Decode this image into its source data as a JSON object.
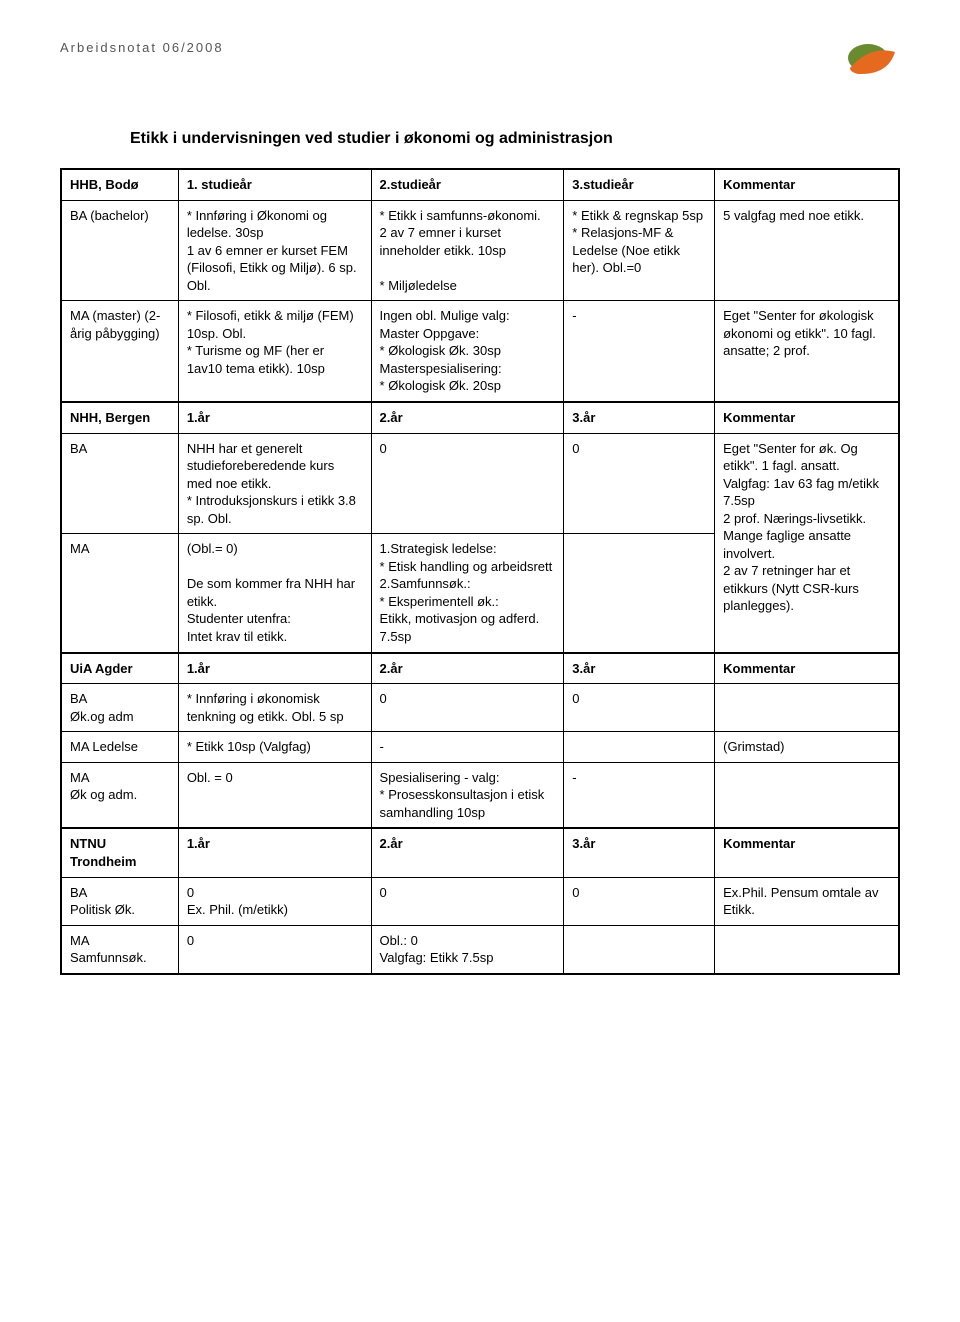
{
  "doc_label": "Arbeidsnotat 06/2008",
  "title": "Etikk i undervisningen ved studier i økonomi og administrasjon",
  "hhb_header": {
    "c0": "HHB, Bodø",
    "c1": "1. studieår",
    "c2": "2.studieår",
    "c3": "3.studieår",
    "c4": "Kommentar"
  },
  "hhb_ba": {
    "c0": "BA (bachelor)",
    "c1": "* Innføring i Økonomi og ledelse. 30sp\n1 av 6 emner er kurset FEM (Filosofi, Etikk og Miljø). 6 sp. Obl.",
    "c2": "* Etikk i samfunns-økonomi.\n2 av 7 emner i kurset inneholder etikk. 10sp\n\n* Miljøledelse",
    "c3": "* Etikk & regnskap 5sp\n* Relasjons-MF & Ledelse (Noe etikk her). Obl.=0",
    "c4": "5 valgfag med noe etikk."
  },
  "hhb_ma": {
    "c0": "MA (master) (2-årig påbygging)",
    "c1": "* Filosofi, etikk & miljø (FEM) 10sp. Obl.\n* Turisme og MF (her er 1av10 tema etikk). 10sp",
    "c2": "Ingen obl. Mulige valg:\nMaster Oppgave:\n* Økologisk Øk. 30sp\nMasterspesialisering:\n* Økologisk Øk. 20sp",
    "c3": "-",
    "c4": "Eget \"Senter for økologisk økonomi og etikk\". 10 fagl. ansatte; 2 prof."
  },
  "nhh_header": {
    "c0": "NHH, Bergen",
    "c1": "1.år",
    "c2": "2.år",
    "c3": "3.år",
    "c4": "Kommentar"
  },
  "nhh_ba": {
    "c0": "BA",
    "c1": "NHH har et generelt studieforeberedende kurs med noe etikk.\n* Introduksjonskurs i etikk 3.8 sp.  Obl.",
    "c2": "0",
    "c3": "0",
    "c4top": "Eget \"Senter for øk. Og etikk\". 1 fagl. ansatt.\nValgfag: 1av 63 fag m/etikk\n7.5sp\n2 prof. Nærings-livsetikk. Mange faglige ansatte involvert.",
    "c4bot": "\n2 av 7 retninger har et etikkurs (Nytt CSR-kurs planlegges)."
  },
  "nhh_ma": {
    "c0": "MA",
    "c1": "(Obl.= 0)\n\nDe som kommer fra NHH har etikk.\nStudenter utenfra:\nIntet krav til etikk.",
    "c2": "1.Strategisk ledelse:\n* Etisk handling og arbeidsrett\n2.Samfunnsøk.:\n* Eksperimentell øk.:\nEtikk, motivasjon og adferd. 7.5sp",
    "c3": ""
  },
  "uia_header": {
    "c0": "UiA Agder",
    "c1": "1.år",
    "c2": "2.år",
    "c3": "3.år",
    "c4": "Kommentar"
  },
  "uia_ba": {
    "c0": "BA\nØk.og adm",
    "c1": "*  Innføring i økonomisk tenkning og etikk. Obl. 5 sp",
    "c2": "0",
    "c3": "0",
    "c4": ""
  },
  "uia_mal": {
    "c0": "MA Ledelse",
    "c1": " * Etikk 10sp (Valgfag)",
    "c2": "-",
    "c3": "",
    "c4": "(Grimstad)"
  },
  "uia_ma": {
    "c0": "MA\nØk og adm.",
    "c1": "Obl. = 0",
    "c2": "Spesialisering - valg:\n* Prosesskonsultasjon i etisk samhandling 10sp",
    "c3": "-",
    "c4": ""
  },
  "ntnu_header": {
    "c0": "NTNU Trondheim",
    "c1": "1.år",
    "c2": "2.år",
    "c3": "3.år",
    "c4": "Kommentar"
  },
  "ntnu_ba": {
    "c0": "BA\nPolitisk Øk.",
    "c1": "0\nEx. Phil. (m/etikk)",
    "c2": "0",
    "c3": "0",
    "c4": "Ex.Phil. Pensum omtale av Etikk."
  },
  "ntnu_ma": {
    "c0": "MA\nSamfunnsøk.",
    "c1": "0",
    "c2": "Obl.: 0\nValgfag: Etikk 7.5sp",
    "c3": "",
    "c4": ""
  },
  "logo_colors": {
    "green": "#6a8a2f",
    "orange": "#e56a1f"
  }
}
